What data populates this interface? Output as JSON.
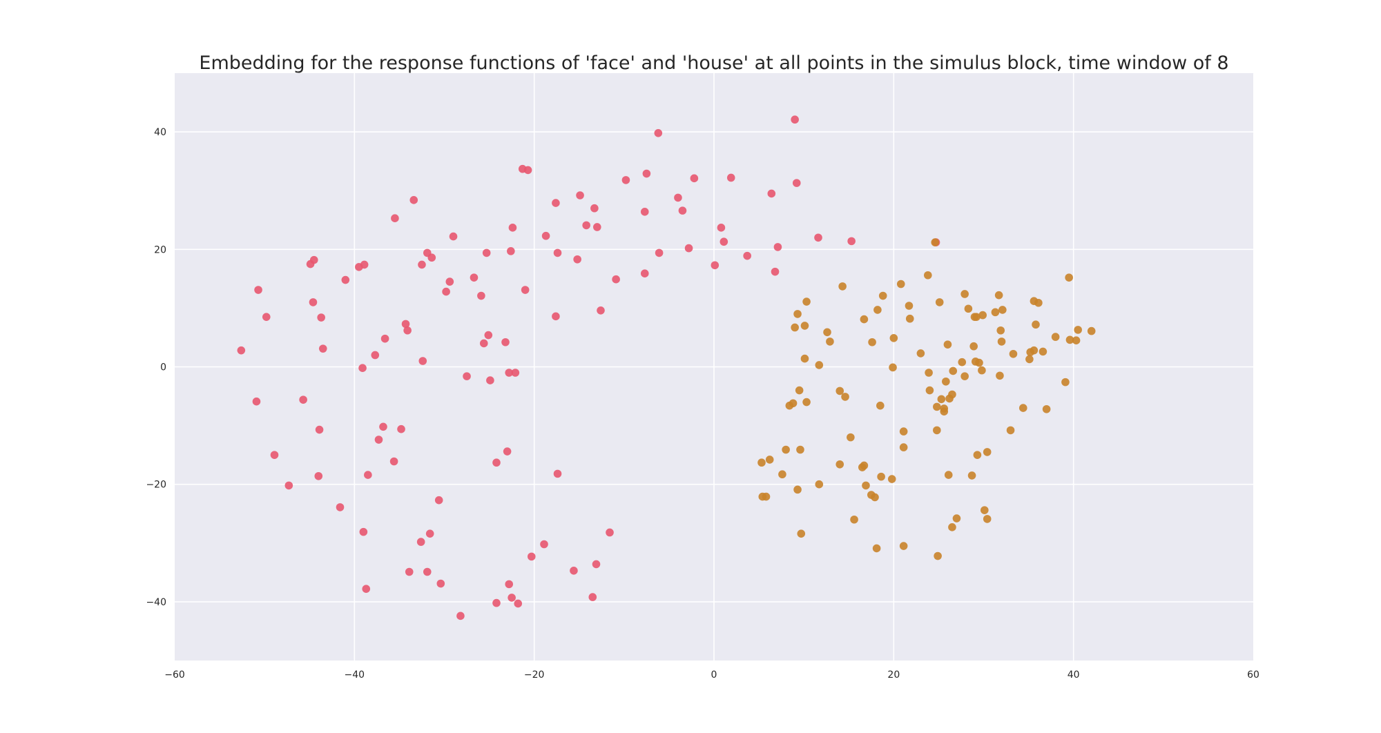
{
  "chart_data": {
    "type": "scatter",
    "title": "Embedding for the response functions of 'face' and 'house' at all points in the simulus block, time window of 8",
    "xlabel": "",
    "ylabel": "",
    "xlim": [
      -60,
      60
    ],
    "ylim": [
      -50,
      50
    ],
    "xticks": [
      -60,
      -40,
      -20,
      0,
      20,
      40,
      60
    ],
    "yticks": [
      -40,
      -20,
      0,
      20,
      40
    ],
    "xtick_labels": [
      "−60",
      "−40",
      "−20",
      "0",
      "20",
      "40",
      "60"
    ],
    "ytick_labels": [
      "−40",
      "−20",
      "0",
      "20",
      "40"
    ],
    "grid": true,
    "legend": "none",
    "series": [
      {
        "color": "#e8566f",
        "points": [
          [
            -52.6,
            2.8
          ],
          [
            -50.7,
            13.1
          ],
          [
            -49.8,
            8.5
          ],
          [
            -50.9,
            -5.9
          ],
          [
            -48.9,
            -15.0
          ],
          [
            -47.3,
            -20.2
          ],
          [
            -45.7,
            -5.6
          ],
          [
            -44.9,
            17.5
          ],
          [
            -44.5,
            18.2
          ],
          [
            -44.6,
            11.0
          ],
          [
            -43.7,
            8.4
          ],
          [
            -43.5,
            3.1
          ],
          [
            -43.9,
            -10.7
          ],
          [
            -44.0,
            -18.6
          ],
          [
            -41.6,
            -23.9
          ],
          [
            -41.0,
            14.8
          ],
          [
            -39.5,
            17.0
          ],
          [
            -38.9,
            17.4
          ],
          [
            -39.1,
            -0.2
          ],
          [
            -38.5,
            -18.4
          ],
          [
            -39.0,
            -28.1
          ],
          [
            -38.7,
            -37.8
          ],
          [
            -37.7,
            2.0
          ],
          [
            -37.3,
            -12.4
          ],
          [
            -36.6,
            4.8
          ],
          [
            -36.8,
            -10.2
          ],
          [
            -35.5,
            25.3
          ],
          [
            -35.6,
            -16.1
          ],
          [
            -34.8,
            -10.6
          ],
          [
            -34.3,
            7.3
          ],
          [
            -34.1,
            6.2
          ],
          [
            -33.9,
            -34.9
          ],
          [
            -33.4,
            28.4
          ],
          [
            -32.5,
            17.4
          ],
          [
            -32.4,
            1.0
          ],
          [
            -32.6,
            -29.8
          ],
          [
            -31.9,
            19.4
          ],
          [
            -31.4,
            18.6
          ],
          [
            -31.9,
            -34.9
          ],
          [
            -31.6,
            -28.4
          ],
          [
            -30.6,
            -22.7
          ],
          [
            -30.4,
            -36.9
          ],
          [
            -29.8,
            12.8
          ],
          [
            -29.4,
            14.5
          ],
          [
            -29.0,
            22.2
          ],
          [
            -28.2,
            -42.4
          ],
          [
            -27.5,
            -1.6
          ],
          [
            -26.7,
            15.2
          ],
          [
            -25.9,
            12.1
          ],
          [
            -25.6,
            4.0
          ],
          [
            -25.3,
            19.4
          ],
          [
            -25.1,
            5.4
          ],
          [
            -24.9,
            -2.3
          ],
          [
            -24.2,
            -16.3
          ],
          [
            -24.2,
            -40.2
          ],
          [
            -23.2,
            4.2
          ],
          [
            -23.0,
            -14.4
          ],
          [
            -22.8,
            -37.0
          ],
          [
            -22.8,
            -1.0
          ],
          [
            -22.6,
            19.7
          ],
          [
            -22.4,
            23.7
          ],
          [
            -22.5,
            -39.3
          ],
          [
            -22.1,
            -1.0
          ],
          [
            -21.8,
            -40.3
          ],
          [
            -21.3,
            33.7
          ],
          [
            -21.0,
            13.1
          ],
          [
            -20.7,
            33.5
          ],
          [
            -20.3,
            -32.3
          ],
          [
            -18.9,
            -30.2
          ],
          [
            -18.7,
            22.3
          ],
          [
            -17.6,
            27.9
          ],
          [
            -17.6,
            8.6
          ],
          [
            -17.4,
            19.4
          ],
          [
            -17.4,
            -18.2
          ],
          [
            -15.6,
            -34.7
          ],
          [
            -15.2,
            18.3
          ],
          [
            -14.9,
            29.2
          ],
          [
            -14.2,
            24.1
          ],
          [
            -13.5,
            -39.2
          ],
          [
            -13.3,
            27.0
          ],
          [
            -13.1,
            -33.6
          ],
          [
            -13.0,
            23.8
          ],
          [
            -12.6,
            9.6
          ],
          [
            -11.6,
            -28.2
          ],
          [
            -10.9,
            14.9
          ],
          [
            -9.8,
            31.8
          ],
          [
            -7.7,
            26.4
          ],
          [
            -7.7,
            15.9
          ],
          [
            -7.5,
            32.9
          ],
          [
            -6.2,
            39.8
          ],
          [
            -6.1,
            19.4
          ],
          [
            -4.0,
            28.8
          ],
          [
            -3.5,
            26.6
          ],
          [
            -2.8,
            20.2
          ],
          [
            -2.2,
            32.1
          ],
          [
            0.1,
            17.3
          ],
          [
            0.8,
            23.7
          ],
          [
            1.1,
            21.3
          ],
          [
            1.9,
            32.2
          ],
          [
            3.7,
            18.9
          ],
          [
            6.4,
            29.5
          ],
          [
            6.8,
            16.2
          ],
          [
            7.1,
            20.4
          ],
          [
            9.0,
            42.1
          ],
          [
            9.2,
            31.3
          ],
          [
            11.6,
            22.0
          ],
          [
            15.3,
            21.4
          ],
          [
            24.7,
            21.2
          ]
        ]
      },
      {
        "color": "#c9832a",
        "points": [
          [
            5.3,
            -16.3
          ],
          [
            5.4,
            -22.1
          ],
          [
            5.8,
            -22.1
          ],
          [
            6.2,
            -15.8
          ],
          [
            7.6,
            -18.3
          ],
          [
            8.0,
            -14.1
          ],
          [
            8.4,
            -6.6
          ],
          [
            8.8,
            -6.2
          ],
          [
            9.0,
            6.7
          ],
          [
            9.3,
            9.0
          ],
          [
            9.5,
            -4.0
          ],
          [
            9.3,
            -20.9
          ],
          [
            9.6,
            -14.1
          ],
          [
            9.7,
            -28.4
          ],
          [
            10.1,
            7.0
          ],
          [
            10.3,
            11.1
          ],
          [
            10.1,
            1.4
          ],
          [
            10.3,
            -6.0
          ],
          [
            11.7,
            0.3
          ],
          [
            11.7,
            -20.0
          ],
          [
            12.6,
            5.9
          ],
          [
            12.9,
            4.3
          ],
          [
            14.0,
            -4.1
          ],
          [
            14.0,
            -16.6
          ],
          [
            14.3,
            13.7
          ],
          [
            14.6,
            -5.1
          ],
          [
            15.2,
            -12.0
          ],
          [
            15.6,
            -26.0
          ],
          [
            16.5,
            -17.1
          ],
          [
            16.7,
            -16.8
          ],
          [
            16.7,
            8.1
          ],
          [
            16.9,
            -20.2
          ],
          [
            17.5,
            -21.8
          ],
          [
            17.6,
            4.2
          ],
          [
            17.9,
            -22.2
          ],
          [
            18.1,
            -30.9
          ],
          [
            18.2,
            9.7
          ],
          [
            18.5,
            -6.6
          ],
          [
            18.6,
            -18.7
          ],
          [
            18.8,
            12.1
          ],
          [
            19.8,
            -19.1
          ],
          [
            19.9,
            -0.1
          ],
          [
            20.0,
            4.9
          ],
          [
            20.8,
            14.1
          ],
          [
            21.1,
            -11.0
          ],
          [
            21.1,
            -13.7
          ],
          [
            21.1,
            -30.5
          ],
          [
            21.7,
            10.4
          ],
          [
            21.8,
            8.2
          ],
          [
            23.0,
            2.3
          ],
          [
            23.8,
            15.6
          ],
          [
            23.9,
            -1.0
          ],
          [
            24.0,
            -4.0
          ],
          [
            24.6,
            21.2
          ],
          [
            24.8,
            -6.8
          ],
          [
            24.8,
            -10.8
          ],
          [
            24.9,
            -32.2
          ],
          [
            25.1,
            11.0
          ],
          [
            25.3,
            -5.5
          ],
          [
            25.6,
            -7.6
          ],
          [
            25.6,
            -7.1
          ],
          [
            25.8,
            -2.5
          ],
          [
            26.0,
            3.8
          ],
          [
            26.1,
            -18.4
          ],
          [
            26.2,
            -5.4
          ],
          [
            26.5,
            -27.3
          ],
          [
            26.5,
            -4.7
          ],
          [
            26.6,
            -0.7
          ],
          [
            27.0,
            -25.8
          ],
          [
            27.6,
            0.8
          ],
          [
            27.9,
            -1.6
          ],
          [
            27.9,
            12.4
          ],
          [
            28.3,
            9.9
          ],
          [
            28.7,
            -18.5
          ],
          [
            28.9,
            3.5
          ],
          [
            29.0,
            8.5
          ],
          [
            29.1,
            0.9
          ],
          [
            29.2,
            8.5
          ],
          [
            29.3,
            -15.0
          ],
          [
            29.5,
            0.7
          ],
          [
            29.8,
            -0.6
          ],
          [
            29.9,
            8.8
          ],
          [
            30.1,
            -24.4
          ],
          [
            30.4,
            -25.9
          ],
          [
            30.4,
            -14.5
          ],
          [
            31.3,
            9.3
          ],
          [
            31.7,
            12.2
          ],
          [
            31.8,
            -1.5
          ],
          [
            31.9,
            6.2
          ],
          [
            32.0,
            4.3
          ],
          [
            32.1,
            9.7
          ],
          [
            33.0,
            -10.8
          ],
          [
            33.3,
            2.2
          ],
          [
            34.4,
            -7.0
          ],
          [
            35.1,
            1.3
          ],
          [
            35.2,
            2.5
          ],
          [
            35.6,
            2.8
          ],
          [
            35.6,
            11.2
          ],
          [
            35.8,
            7.2
          ],
          [
            36.1,
            10.9
          ],
          [
            36.6,
            2.6
          ],
          [
            37.0,
            -7.2
          ],
          [
            38.0,
            5.1
          ],
          [
            39.1,
            -2.6
          ],
          [
            39.5,
            15.2
          ],
          [
            39.6,
            4.6
          ],
          [
            40.3,
            4.5
          ],
          [
            40.5,
            6.3
          ],
          [
            42.0,
            6.1
          ]
        ]
      }
    ]
  }
}
